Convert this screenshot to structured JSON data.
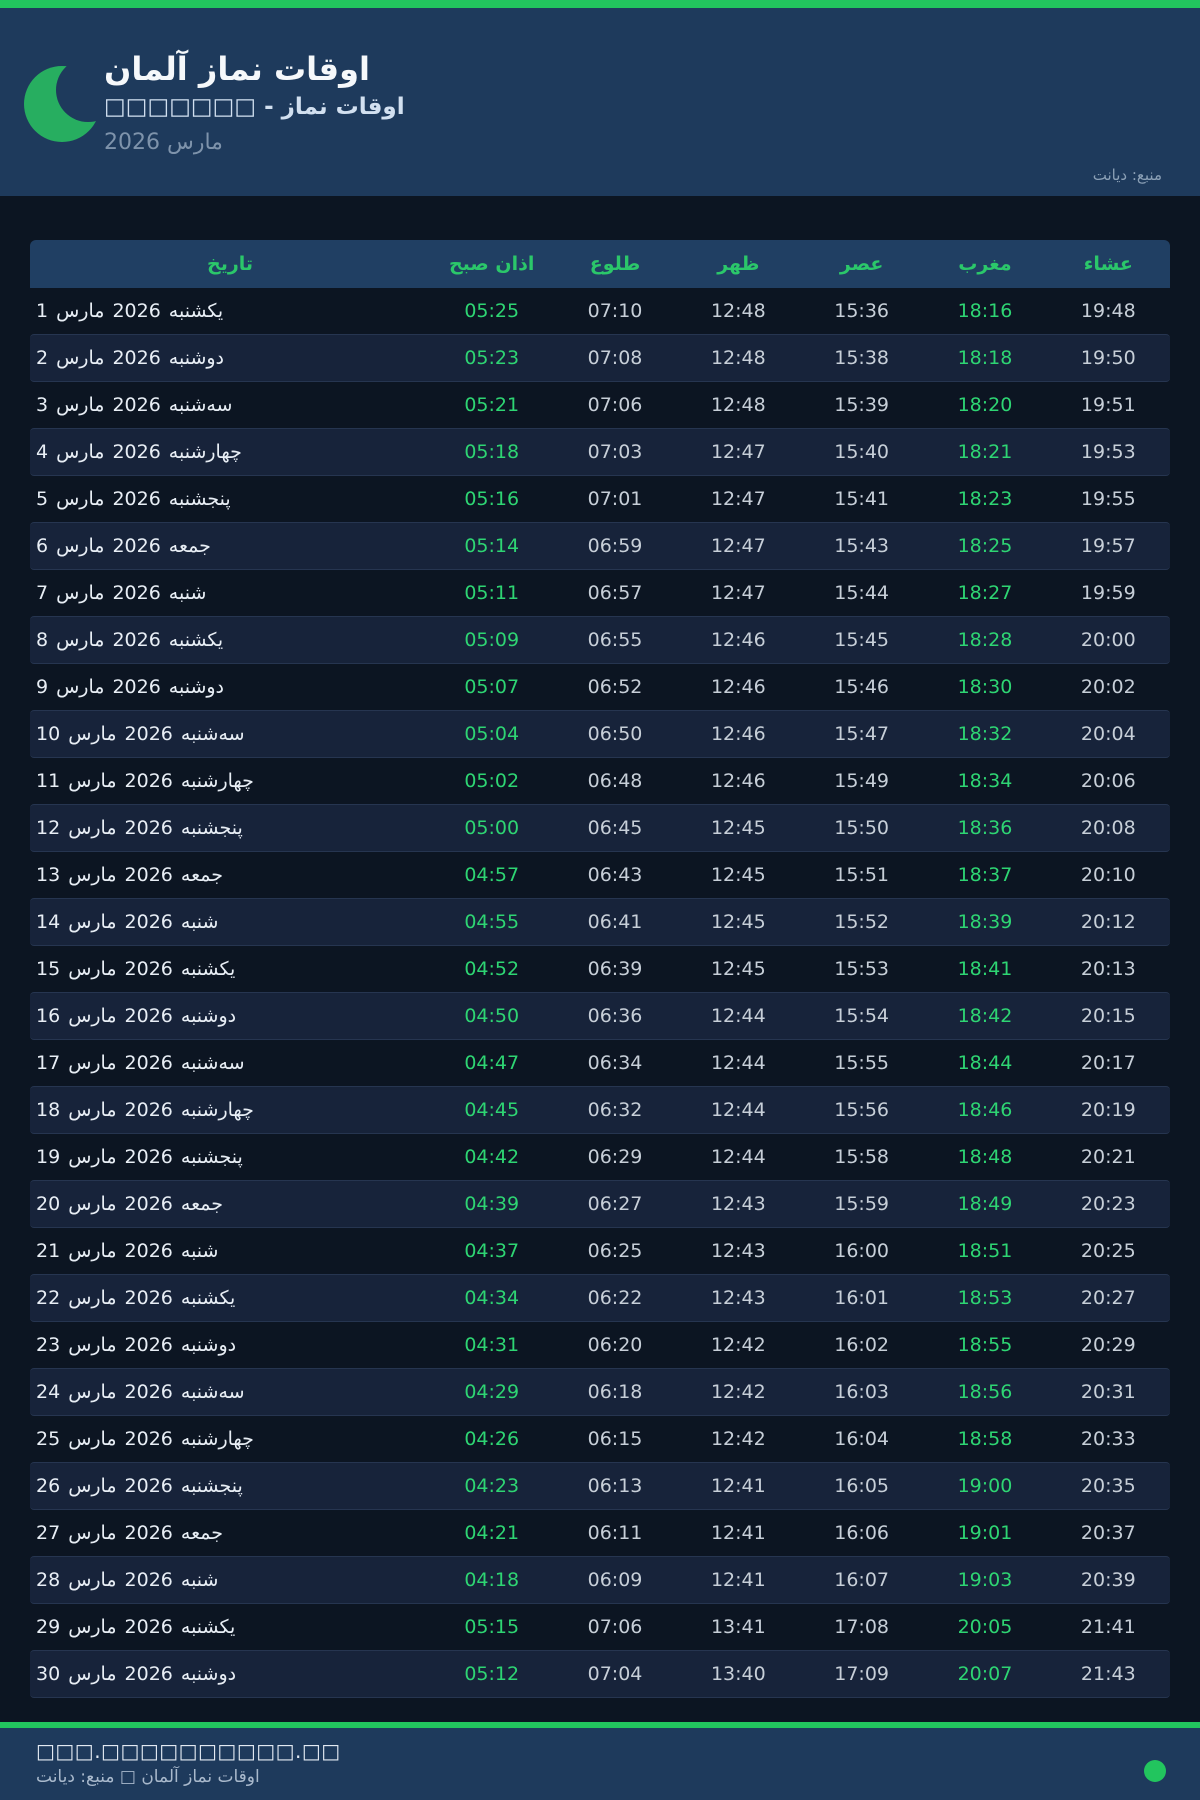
{
  "header": {
    "title": "اوقات نماز آلمان",
    "subtitle": "اوقات نماز - □□□□□□□",
    "month_year": "مارس 2026",
    "source": "منبع: دیانت",
    "logo_icon": "crescent-moon-icon"
  },
  "colors": {
    "accent_green": "#22c55e",
    "time_green": "#2ed573",
    "header_green": "#2bc76a",
    "header_navy": "#1e3a5c",
    "band_navy": "#203f63",
    "page_navy": "#0c1522",
    "row_stripe": "#17233a"
  },
  "table": {
    "columns": [
      "تاریخ",
      "اذان صبح",
      "طلوع",
      "ظهر",
      "عصر",
      "مغرب",
      "عشاء"
    ],
    "month": "مارس",
    "year": "2026",
    "rows": [
      {
        "day": "1",
        "weekday": "یکشنبه",
        "fajr": "05:25",
        "sunrise": "07:10",
        "dhuhr": "12:48",
        "asr": "15:36",
        "maghrib": "18:16",
        "isha": "19:48"
      },
      {
        "day": "2",
        "weekday": "دوشنبه",
        "fajr": "05:23",
        "sunrise": "07:08",
        "dhuhr": "12:48",
        "asr": "15:38",
        "maghrib": "18:18",
        "isha": "19:50"
      },
      {
        "day": "3",
        "weekday": "سه‌شنبه",
        "fajr": "05:21",
        "sunrise": "07:06",
        "dhuhr": "12:48",
        "asr": "15:39",
        "maghrib": "18:20",
        "isha": "19:51"
      },
      {
        "day": "4",
        "weekday": "چهارشنبه",
        "fajr": "05:18",
        "sunrise": "07:03",
        "dhuhr": "12:47",
        "asr": "15:40",
        "maghrib": "18:21",
        "isha": "19:53"
      },
      {
        "day": "5",
        "weekday": "پنجشنبه",
        "fajr": "05:16",
        "sunrise": "07:01",
        "dhuhr": "12:47",
        "asr": "15:41",
        "maghrib": "18:23",
        "isha": "19:55"
      },
      {
        "day": "6",
        "weekday": "جمعه",
        "fajr": "05:14",
        "sunrise": "06:59",
        "dhuhr": "12:47",
        "asr": "15:43",
        "maghrib": "18:25",
        "isha": "19:57"
      },
      {
        "day": "7",
        "weekday": "شنبه",
        "fajr": "05:11",
        "sunrise": "06:57",
        "dhuhr": "12:47",
        "asr": "15:44",
        "maghrib": "18:27",
        "isha": "19:59"
      },
      {
        "day": "8",
        "weekday": "یکشنبه",
        "fajr": "05:09",
        "sunrise": "06:55",
        "dhuhr": "12:46",
        "asr": "15:45",
        "maghrib": "18:28",
        "isha": "20:00"
      },
      {
        "day": "9",
        "weekday": "دوشنبه",
        "fajr": "05:07",
        "sunrise": "06:52",
        "dhuhr": "12:46",
        "asr": "15:46",
        "maghrib": "18:30",
        "isha": "20:02"
      },
      {
        "day": "10",
        "weekday": "سه‌شنبه",
        "fajr": "05:04",
        "sunrise": "06:50",
        "dhuhr": "12:46",
        "asr": "15:47",
        "maghrib": "18:32",
        "isha": "20:04"
      },
      {
        "day": "11",
        "weekday": "چهارشنبه",
        "fajr": "05:02",
        "sunrise": "06:48",
        "dhuhr": "12:46",
        "asr": "15:49",
        "maghrib": "18:34",
        "isha": "20:06"
      },
      {
        "day": "12",
        "weekday": "پنجشنبه",
        "fajr": "05:00",
        "sunrise": "06:45",
        "dhuhr": "12:45",
        "asr": "15:50",
        "maghrib": "18:36",
        "isha": "20:08"
      },
      {
        "day": "13",
        "weekday": "جمعه",
        "fajr": "04:57",
        "sunrise": "06:43",
        "dhuhr": "12:45",
        "asr": "15:51",
        "maghrib": "18:37",
        "isha": "20:10"
      },
      {
        "day": "14",
        "weekday": "شنبه",
        "fajr": "04:55",
        "sunrise": "06:41",
        "dhuhr": "12:45",
        "asr": "15:52",
        "maghrib": "18:39",
        "isha": "20:12"
      },
      {
        "day": "15",
        "weekday": "یکشنبه",
        "fajr": "04:52",
        "sunrise": "06:39",
        "dhuhr": "12:45",
        "asr": "15:53",
        "maghrib": "18:41",
        "isha": "20:13"
      },
      {
        "day": "16",
        "weekday": "دوشنبه",
        "fajr": "04:50",
        "sunrise": "06:36",
        "dhuhr": "12:44",
        "asr": "15:54",
        "maghrib": "18:42",
        "isha": "20:15"
      },
      {
        "day": "17",
        "weekday": "سه‌شنبه",
        "fajr": "04:47",
        "sunrise": "06:34",
        "dhuhr": "12:44",
        "asr": "15:55",
        "maghrib": "18:44",
        "isha": "20:17"
      },
      {
        "day": "18",
        "weekday": "چهارشنبه",
        "fajr": "04:45",
        "sunrise": "06:32",
        "dhuhr": "12:44",
        "asr": "15:56",
        "maghrib": "18:46",
        "isha": "20:19"
      },
      {
        "day": "19",
        "weekday": "پنجشنبه",
        "fajr": "04:42",
        "sunrise": "06:29",
        "dhuhr": "12:44",
        "asr": "15:58",
        "maghrib": "18:48",
        "isha": "20:21"
      },
      {
        "day": "20",
        "weekday": "جمعه",
        "fajr": "04:39",
        "sunrise": "06:27",
        "dhuhr": "12:43",
        "asr": "15:59",
        "maghrib": "18:49",
        "isha": "20:23"
      },
      {
        "day": "21",
        "weekday": "شنبه",
        "fajr": "04:37",
        "sunrise": "06:25",
        "dhuhr": "12:43",
        "asr": "16:00",
        "maghrib": "18:51",
        "isha": "20:25"
      },
      {
        "day": "22",
        "weekday": "یکشنبه",
        "fajr": "04:34",
        "sunrise": "06:22",
        "dhuhr": "12:43",
        "asr": "16:01",
        "maghrib": "18:53",
        "isha": "20:27"
      },
      {
        "day": "23",
        "weekday": "دوشنبه",
        "fajr": "04:31",
        "sunrise": "06:20",
        "dhuhr": "12:42",
        "asr": "16:02",
        "maghrib": "18:55",
        "isha": "20:29"
      },
      {
        "day": "24",
        "weekday": "سه‌شنبه",
        "fajr": "04:29",
        "sunrise": "06:18",
        "dhuhr": "12:42",
        "asr": "16:03",
        "maghrib": "18:56",
        "isha": "20:31"
      },
      {
        "day": "25",
        "weekday": "چهارشنبه",
        "fajr": "04:26",
        "sunrise": "06:15",
        "dhuhr": "12:42",
        "asr": "16:04",
        "maghrib": "18:58",
        "isha": "20:33"
      },
      {
        "day": "26",
        "weekday": "پنجشنبه",
        "fajr": "04:23",
        "sunrise": "06:13",
        "dhuhr": "12:41",
        "asr": "16:05",
        "maghrib": "19:00",
        "isha": "20:35"
      },
      {
        "day": "27",
        "weekday": "جمعه",
        "fajr": "04:21",
        "sunrise": "06:11",
        "dhuhr": "12:41",
        "asr": "16:06",
        "maghrib": "19:01",
        "isha": "20:37"
      },
      {
        "day": "28",
        "weekday": "شنبه",
        "fajr": "04:18",
        "sunrise": "06:09",
        "dhuhr": "12:41",
        "asr": "16:07",
        "maghrib": "19:03",
        "isha": "20:39"
      },
      {
        "day": "29",
        "weekday": "یکشنبه",
        "fajr": "05:15",
        "sunrise": "07:06",
        "dhuhr": "13:41",
        "asr": "17:08",
        "maghrib": "20:05",
        "isha": "21:41"
      },
      {
        "day": "30",
        "weekday": "دوشنبه",
        "fajr": "05:12",
        "sunrise": "07:04",
        "dhuhr": "13:40",
        "asr": "17:09",
        "maghrib": "20:07",
        "isha": "21:43"
      }
    ]
  },
  "footer": {
    "url_placeholder": "□□□.□□□□□□□□□□.□□",
    "credit": "اوقات نماز آلمان □ منبع: دیانت"
  }
}
